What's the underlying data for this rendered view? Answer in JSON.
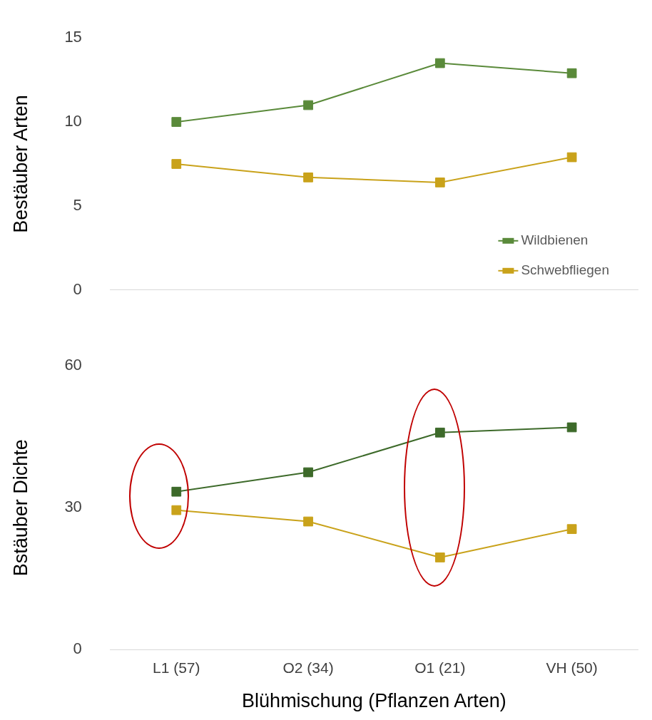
{
  "chart_data": [
    {
      "type": "line",
      "ylabel": "Bestäuber Arten",
      "categories": [
        null,
        null,
        null,
        null
      ],
      "ylim": [
        0,
        15
      ],
      "yticks": [
        0,
        5,
        10,
        15
      ],
      "grid": false,
      "legend": "bottom right",
      "marker": "square",
      "line_style": "solid",
      "tick_labels": "y",
      "series": [
        {
          "name": "Wildbienen",
          "color": "#5a8a3a",
          "values": [
            10,
            11,
            13.5,
            12.9
          ]
        },
        {
          "name": "Schwebfliegen",
          "color": "#c9a21a",
          "values": [
            7.5,
            6.7,
            6.4,
            7.9
          ]
        }
      ]
    },
    {
      "type": "line",
      "ylabel": "Bstäuber Dichte",
      "xlabel": "Blühmischung (Pflanzen Arten)",
      "categories": [
        "L1 (57)",
        "O2 (34)",
        "O1 (21)",
        "VH (50)"
      ],
      "ylim": [
        0,
        60
      ],
      "yticks": [
        0,
        30,
        60
      ],
      "grid": false,
      "legend": false,
      "marker": "square",
      "line_style": "solid",
      "series": [
        {
          "color": "#3d6a2a",
          "values": [
            33.4,
            37.5,
            45.9,
            47.0
          ]
        },
        {
          "color": "#c9a21a",
          "values": [
            29.5,
            27.1,
            19.5,
            25.5
          ]
        }
      ]
    }
  ]
}
